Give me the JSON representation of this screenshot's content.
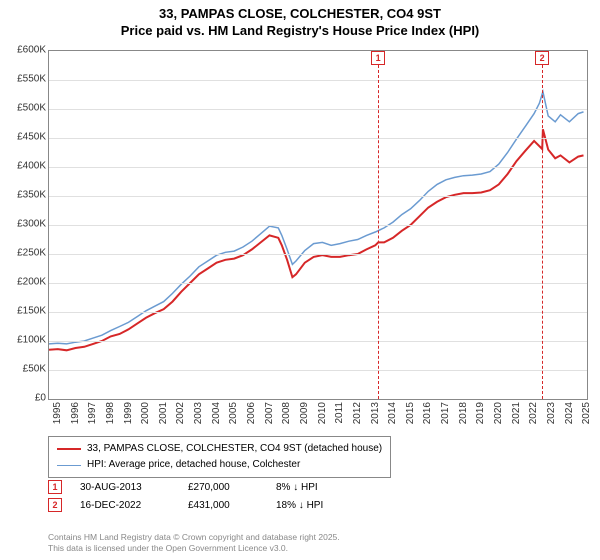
{
  "title_line1": "33, PAMPAS CLOSE, COLCHESTER, CO4 9ST",
  "title_line2": "Price paid vs. HM Land Registry's House Price Index (HPI)",
  "chart": {
    "type": "line",
    "background_color": "#ffffff",
    "grid_color": "#e0e0e0",
    "border_color": "#888888",
    "x_min": 1995,
    "x_max": 2025.5,
    "x_ticks": [
      1995,
      1996,
      1997,
      1998,
      1999,
      2000,
      2001,
      2002,
      2003,
      2004,
      2005,
      2006,
      2007,
      2008,
      2009,
      2010,
      2011,
      2012,
      2013,
      2014,
      2015,
      2016,
      2017,
      2018,
      2019,
      2020,
      2021,
      2022,
      2023,
      2024,
      2025
    ],
    "y_min": 0,
    "y_max": 600000,
    "y_tick_step": 50000,
    "y_ticks": [
      0,
      50000,
      100000,
      150000,
      200000,
      250000,
      300000,
      350000,
      400000,
      450000,
      500000,
      550000,
      600000
    ],
    "y_tick_labels": [
      "£0",
      "£50K",
      "£100K",
      "£150K",
      "£200K",
      "£250K",
      "£300K",
      "£350K",
      "£400K",
      "£450K",
      "£500K",
      "£550K",
      "£600K"
    ],
    "series": [
      {
        "name": "price_paid",
        "label": "33, PAMPAS CLOSE, COLCHESTER, CO4 9ST (detached house)",
        "legend_label": "33, PAMPAS CLOSE, COLCHESTER, CO4 9ST (detached house)",
        "color": "#d62728",
        "line_width": 2,
        "data": [
          [
            1995.0,
            85000
          ],
          [
            1995.5,
            86000
          ],
          [
            1996.0,
            84000
          ],
          [
            1996.5,
            88000
          ],
          [
            1997.0,
            90000
          ],
          [
            1997.5,
            95000
          ],
          [
            1998.0,
            100000
          ],
          [
            1998.5,
            108000
          ],
          [
            1999.0,
            112000
          ],
          [
            1999.5,
            120000
          ],
          [
            2000.0,
            130000
          ],
          [
            2000.5,
            140000
          ],
          [
            2001.0,
            148000
          ],
          [
            2001.5,
            155000
          ],
          [
            2002.0,
            168000
          ],
          [
            2002.5,
            185000
          ],
          [
            2003.0,
            200000
          ],
          [
            2003.5,
            215000
          ],
          [
            2004.0,
            225000
          ],
          [
            2004.5,
            235000
          ],
          [
            2005.0,
            240000
          ],
          [
            2005.5,
            242000
          ],
          [
            2006.0,
            248000
          ],
          [
            2006.5,
            258000
          ],
          [
            2007.0,
            270000
          ],
          [
            2007.5,
            282000
          ],
          [
            2008.0,
            278000
          ],
          [
            2008.2,
            265000
          ],
          [
            2008.5,
            240000
          ],
          [
            2008.8,
            210000
          ],
          [
            2009.0,
            215000
          ],
          [
            2009.5,
            235000
          ],
          [
            2010.0,
            245000
          ],
          [
            2010.5,
            248000
          ],
          [
            2011.0,
            245000
          ],
          [
            2011.5,
            245000
          ],
          [
            2012.0,
            248000
          ],
          [
            2012.5,
            250000
          ],
          [
            2013.0,
            258000
          ],
          [
            2013.5,
            265000
          ],
          [
            2013.66,
            270000
          ],
          [
            2014.0,
            270000
          ],
          [
            2014.5,
            278000
          ],
          [
            2015.0,
            290000
          ],
          [
            2015.5,
            300000
          ],
          [
            2016.0,
            315000
          ],
          [
            2016.5,
            330000
          ],
          [
            2017.0,
            340000
          ],
          [
            2017.5,
            348000
          ],
          [
            2018.0,
            352000
          ],
          [
            2018.5,
            355000
          ],
          [
            2019.0,
            355000
          ],
          [
            2019.5,
            356000
          ],
          [
            2020.0,
            360000
          ],
          [
            2020.5,
            370000
          ],
          [
            2021.0,
            388000
          ],
          [
            2021.5,
            410000
          ],
          [
            2022.0,
            428000
          ],
          [
            2022.5,
            445000
          ],
          [
            2022.96,
            431000
          ],
          [
            2023.0,
            465000
          ],
          [
            2023.3,
            430000
          ],
          [
            2023.7,
            415000
          ],
          [
            2024.0,
            420000
          ],
          [
            2024.5,
            408000
          ],
          [
            2025.0,
            418000
          ],
          [
            2025.3,
            420000
          ]
        ]
      },
      {
        "name": "hpi",
        "label": "HPI: Average price, detached house, Colchester",
        "legend_label": "HPI: Average price, detached house, Colchester",
        "color": "#6b9bd1",
        "line_width": 1.5,
        "data": [
          [
            1995.0,
            95000
          ],
          [
            1995.5,
            96000
          ],
          [
            1996.0,
            95000
          ],
          [
            1996.5,
            98000
          ],
          [
            1997.0,
            100000
          ],
          [
            1997.5,
            105000
          ],
          [
            1998.0,
            110000
          ],
          [
            1998.5,
            118000
          ],
          [
            1999.0,
            125000
          ],
          [
            1999.5,
            132000
          ],
          [
            2000.0,
            142000
          ],
          [
            2000.5,
            152000
          ],
          [
            2001.0,
            160000
          ],
          [
            2001.5,
            168000
          ],
          [
            2002.0,
            182000
          ],
          [
            2002.5,
            198000
          ],
          [
            2003.0,
            212000
          ],
          [
            2003.5,
            228000
          ],
          [
            2004.0,
            238000
          ],
          [
            2004.5,
            248000
          ],
          [
            2005.0,
            253000
          ],
          [
            2005.5,
            255000
          ],
          [
            2006.0,
            262000
          ],
          [
            2006.5,
            272000
          ],
          [
            2007.0,
            285000
          ],
          [
            2007.5,
            298000
          ],
          [
            2008.0,
            295000
          ],
          [
            2008.2,
            282000
          ],
          [
            2008.5,
            258000
          ],
          [
            2008.8,
            232000
          ],
          [
            2009.0,
            238000
          ],
          [
            2009.5,
            256000
          ],
          [
            2010.0,
            268000
          ],
          [
            2010.5,
            270000
          ],
          [
            2011.0,
            265000
          ],
          [
            2011.5,
            268000
          ],
          [
            2012.0,
            272000
          ],
          [
            2012.5,
            275000
          ],
          [
            2013.0,
            282000
          ],
          [
            2013.5,
            288000
          ],
          [
            2014.0,
            295000
          ],
          [
            2014.5,
            305000
          ],
          [
            2015.0,
            318000
          ],
          [
            2015.5,
            328000
          ],
          [
            2016.0,
            342000
          ],
          [
            2016.5,
            358000
          ],
          [
            2017.0,
            370000
          ],
          [
            2017.5,
            378000
          ],
          [
            2018.0,
            382000
          ],
          [
            2018.5,
            385000
          ],
          [
            2019.0,
            386000
          ],
          [
            2019.5,
            388000
          ],
          [
            2020.0,
            392000
          ],
          [
            2020.5,
            405000
          ],
          [
            2021.0,
            425000
          ],
          [
            2021.5,
            448000
          ],
          [
            2022.0,
            470000
          ],
          [
            2022.5,
            492000
          ],
          [
            2022.8,
            510000
          ],
          [
            2023.0,
            530000
          ],
          [
            2023.3,
            488000
          ],
          [
            2023.7,
            478000
          ],
          [
            2024.0,
            490000
          ],
          [
            2024.5,
            478000
          ],
          [
            2025.0,
            492000
          ],
          [
            2025.3,
            495000
          ]
        ]
      }
    ],
    "sale_markers": [
      {
        "idx": "1",
        "x": 2013.66,
        "color": "#d62728"
      },
      {
        "idx": "2",
        "x": 2022.96,
        "color": "#d62728"
      }
    ]
  },
  "sales": [
    {
      "idx": "1",
      "date": "30-AUG-2013",
      "price": "£270,000",
      "diff": "8% ↓ HPI",
      "color": "#d62728"
    },
    {
      "idx": "2",
      "date": "16-DEC-2022",
      "price": "£431,000",
      "diff": "18% ↓ HPI",
      "color": "#d62728"
    }
  ],
  "legend": {
    "items": [
      {
        "color": "#d62728",
        "width": 2,
        "label": "33, PAMPAS CLOSE, COLCHESTER, CO4 9ST (detached house)"
      },
      {
        "color": "#6b9bd1",
        "width": 1.5,
        "label": "HPI: Average price, detached house, Colchester"
      }
    ]
  },
  "footer_line1": "Contains HM Land Registry data © Crown copyright and database right 2025.",
  "footer_line2": "This data is licensed under the Open Government Licence v3.0."
}
